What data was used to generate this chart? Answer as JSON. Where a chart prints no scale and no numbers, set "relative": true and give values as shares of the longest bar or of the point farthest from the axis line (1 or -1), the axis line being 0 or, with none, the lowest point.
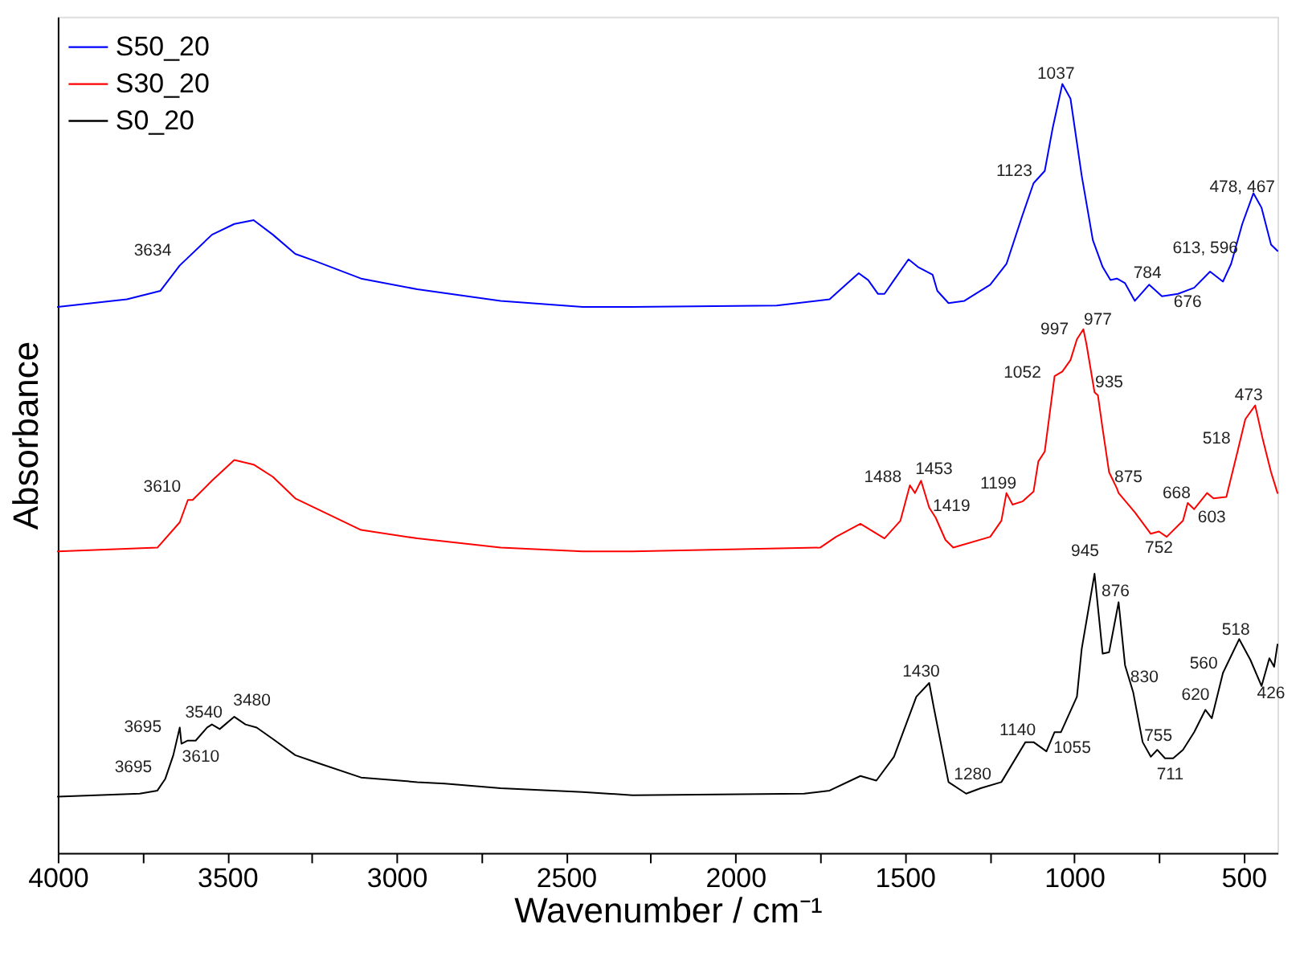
{
  "chart_data": {
    "type": "line",
    "relative": true,
    "xlabel": "Wavenumber / cm⁻¹",
    "ylabel": "Absorbance",
    "xlim": [
      4000,
      400
    ],
    "xticks": [
      4000,
      {
        "value": 3750,
        "label": null
      },
      3500,
      {
        "value": 3250,
        "label": null
      },
      3000,
      {
        "value": 2750,
        "label": null
      },
      2500,
      {
        "value": 2250,
        "label": null
      },
      2000,
      {
        "value": 1750,
        "label": null
      },
      1500,
      {
        "value": 1250,
        "label": null
      },
      1000,
      {
        "value": 750,
        "label": null
      },
      500
    ],
    "grid": false,
    "legend": "top left",
    "line_style": "solid",
    "marker": "none",
    "series": [
      {
        "name": "S50_20",
        "color": "#0000ff",
        "x": [
          4000,
          3796,
          3697,
          3640,
          3545,
          3479,
          3422,
          3365,
          3299,
          3242,
          3105,
          2939,
          2693,
          2451,
          2304,
          1878,
          1722,
          1674,
          1636,
          1608,
          1579,
          1560,
          1532,
          1489,
          1461,
          1418,
          1404,
          1371,
          1324,
          1248,
          1200,
          1153,
          1120,
          1087,
          1063,
          1035,
          1011,
          978,
          945,
          916,
          893,
          874,
          850,
          821,
          779,
          741,
          694,
          646,
          599,
          561,
          537,
          504,
          471,
          447,
          419,
          400
        ],
        "values": [
          0.71,
          0.72,
          0.731,
          0.764,
          0.804,
          0.818,
          0.823,
          0.804,
          0.779,
          0.77,
          0.747,
          0.733,
          0.718,
          0.71,
          0.71,
          0.712,
          0.72,
          0.739,
          0.754,
          0.745,
          0.727,
          0.727,
          0.745,
          0.772,
          0.762,
          0.752,
          0.731,
          0.715,
          0.718,
          0.739,
          0.766,
          0.829,
          0.871,
          0.887,
          0.944,
          1.0,
          0.981,
          0.881,
          0.797,
          0.762,
          0.745,
          0.747,
          0.741,
          0.718,
          0.739,
          0.724,
          0.727,
          0.735,
          0.756,
          0.743,
          0.766,
          0.818,
          0.858,
          0.839,
          0.791,
          0.783
        ]
      },
      {
        "name": "S30_20",
        "color": "#ff0000",
        "x": [
          4000,
          3706,
          3640,
          3616,
          3602,
          3545,
          3479,
          3422,
          3365,
          3299,
          3242,
          3105,
          2939,
          2693,
          2451,
          2304,
          1750,
          1703,
          1631,
          1560,
          1513,
          1485,
          1470,
          1452,
          1428,
          1409,
          1380,
          1357,
          1248,
          1215,
          1200,
          1182,
          1153,
          1120,
          1106,
          1087,
          1058,
          1035,
          1011,
          992,
          973,
          964,
          940,
          930,
          916,
          897,
          874,
          869,
          821,
          774,
          750,
          727,
          679,
          665,
          646,
          608,
          589,
          551,
          518,
          495,
          466,
          443,
          419,
          400
        ],
        "values": [
          0.392,
          0.397,
          0.43,
          0.459,
          0.459,
          0.484,
          0.511,
          0.505,
          0.489,
          0.461,
          0.449,
          0.42,
          0.409,
          0.397,
          0.392,
          0.392,
          0.397,
          0.411,
          0.428,
          0.409,
          0.432,
          0.478,
          0.468,
          0.484,
          0.449,
          0.436,
          0.407,
          0.397,
          0.411,
          0.432,
          0.468,
          0.453,
          0.457,
          0.47,
          0.509,
          0.522,
          0.62,
          0.626,
          0.641,
          0.668,
          0.681,
          0.662,
          0.599,
          0.595,
          0.551,
          0.495,
          0.474,
          0.468,
          0.443,
          0.415,
          0.418,
          0.411,
          0.432,
          0.455,
          0.447,
          0.468,
          0.461,
          0.463,
          0.522,
          0.564,
          0.582,
          0.537,
          0.495,
          0.468
        ]
      },
      {
        "name": "S0_20",
        "color": "#000000",
        "x": [
          4000,
          3758,
          3706,
          3683,
          3659,
          3640,
          3635,
          3616,
          3593,
          3559,
          3545,
          3522,
          3479,
          3446,
          3413,
          3365,
          3299,
          3233,
          3105,
          2939,
          2858,
          2693,
          2451,
          2304,
          1797,
          1722,
          1631,
          1584,
          1532,
          1466,
          1428,
          1414,
          1371,
          1319,
          1276,
          1215,
          1144,
          1120,
          1082,
          1058,
          1039,
          992,
          978,
          940,
          916,
          897,
          869,
          850,
          826,
          798,
          774,
          755,
          732,
          708,
          679,
          646,
          613,
          594,
          561,
          513,
          480,
          447,
          424,
          410,
          400
        ],
        "values": [
          0.073,
          0.077,
          0.081,
          0.096,
          0.127,
          0.163,
          0.142,
          0.146,
          0.146,
          0.163,
          0.167,
          0.161,
          0.177,
          0.167,
          0.163,
          0.148,
          0.127,
          0.117,
          0.098,
          0.092,
          0.09,
          0.084,
          0.079,
          0.075,
          0.077,
          0.081,
          0.1,
          0.094,
          0.125,
          0.203,
          0.221,
          0.188,
          0.092,
          0.077,
          0.084,
          0.092,
          0.144,
          0.144,
          0.132,
          0.157,
          0.157,
          0.203,
          0.265,
          0.363,
          0.259,
          0.261,
          0.326,
          0.244,
          0.209,
          0.144,
          0.125,
          0.134,
          0.123,
          0.123,
          0.134,
          0.157,
          0.186,
          0.175,
          0.234,
          0.278,
          0.251,
          0.217,
          0.253,
          0.242,
          0.271
        ]
      }
    ],
    "annotations": [
      "3634",
      "1123",
      "1037",
      "784",
      "613, 596",
      "676",
      "478, 467",
      "3610",
      "997",
      "977",
      "1052",
      "935",
      "473",
      "518",
      "1488",
      "1453",
      "1419",
      "1199",
      "875",
      "668",
      "603",
      "752",
      "3695",
      "3695",
      "3540",
      "3610",
      "3480",
      "1430",
      "1280",
      "1140",
      "1055",
      "945",
      "876",
      "830",
      "755",
      "711",
      "620",
      "560",
      "518",
      "426"
    ]
  }
}
